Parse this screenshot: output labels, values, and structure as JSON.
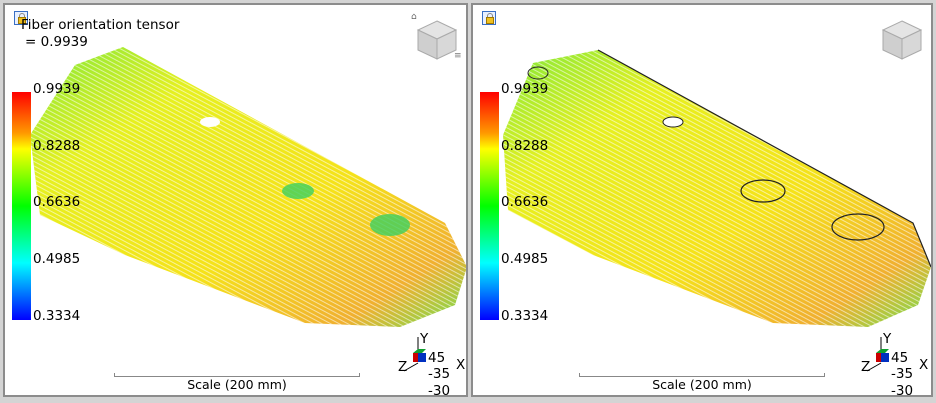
{
  "left_view": {
    "title": "Fiber orientation tensor",
    "max_value": "= 0.9939",
    "legend_ticks": [
      "0.9939",
      "0.8288",
      "0.6636",
      "0.4985",
      "0.3334"
    ],
    "scale_label": "Scale (200 mm)",
    "axis_labels": {
      "y": "Y",
      "z": "Z",
      "x": "X"
    },
    "rotation": [
      "45",
      "-35",
      "-30"
    ]
  },
  "right_view": {
    "legend_ticks": [
      "0.9939",
      "0.8288",
      "0.6636",
      "0.4985",
      "0.3334"
    ],
    "scale_label": "Scale (200 mm)",
    "axis_labels": {
      "y": "Y",
      "z": "Z",
      "x": "X"
    },
    "rotation": [
      "45",
      "-35",
      "-30"
    ]
  },
  "icons": {
    "lock": "lock-icon",
    "home": "home-icon",
    "view_cube": "view-cube",
    "menu": "menu-icon",
    "triad": "axis-triad"
  },
  "colormap": [
    "#ff0000",
    "#ffff00",
    "#00ff00",
    "#00ffff",
    "#0000ff"
  ]
}
